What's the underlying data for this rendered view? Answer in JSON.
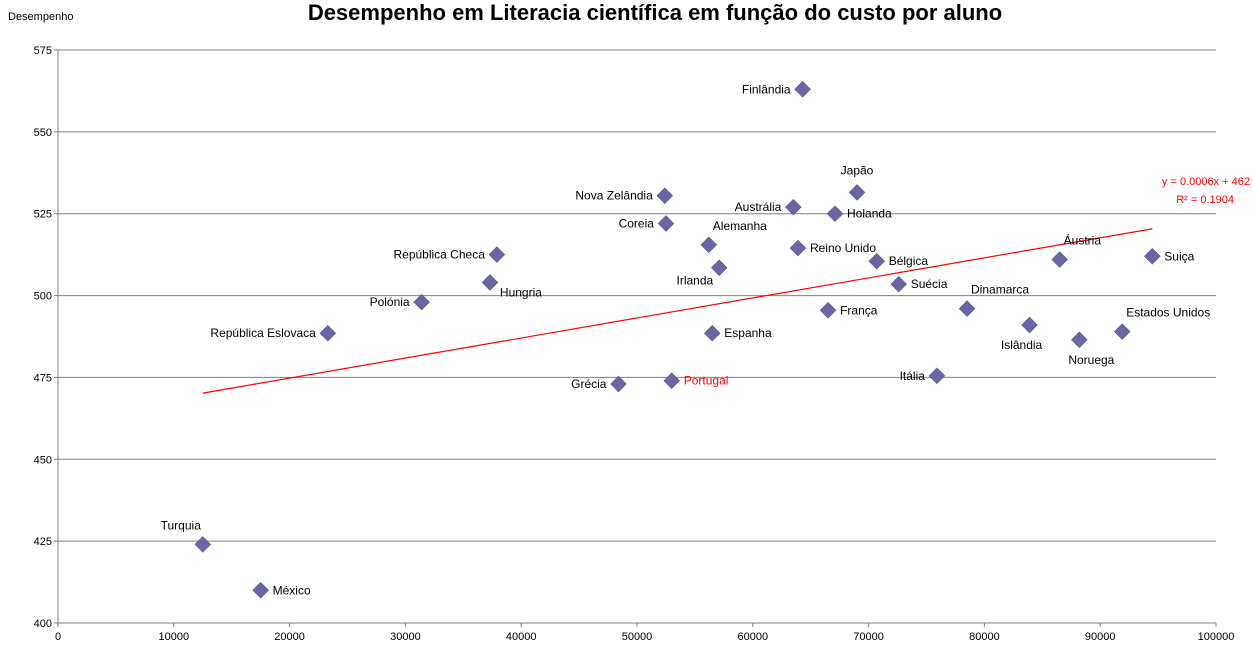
{
  "chart_data": {
    "type": "scatter",
    "title": "Desempenho em Literacia científica em função do custo por aluno",
    "ylabel": "Desempenho",
    "xlabel": "",
    "xlim": [
      0,
      100000
    ],
    "ylim": [
      400,
      575
    ],
    "x_ticks": [
      0,
      10000,
      20000,
      30000,
      40000,
      50000,
      60000,
      70000,
      80000,
      90000,
      100000
    ],
    "y_ticks": [
      400,
      425,
      450,
      475,
      500,
      525,
      550,
      575
    ],
    "grid": "horizontal",
    "marker_color": "#6a66a3",
    "highlight_color": "#ff0000",
    "points": [
      {
        "label": "Finlândia",
        "x": 64300,
        "y": 563,
        "label_side": "left"
      },
      {
        "label": "Japão",
        "x": 69000,
        "y": 531.5,
        "label_side": "above"
      },
      {
        "label": "Nova Zelândia",
        "x": 52400,
        "y": 530.5,
        "label_side": "left"
      },
      {
        "label": "Austrália",
        "x": 63500,
        "y": 527,
        "label_side": "left"
      },
      {
        "label": "Holanda",
        "x": 67100,
        "y": 525,
        "label_side": "right"
      },
      {
        "label": "Coreia",
        "x": 52500,
        "y": 522,
        "label_side": "left"
      },
      {
        "label": "Alemanha",
        "x": 56200,
        "y": 515.5,
        "label_side": "aboveright"
      },
      {
        "label": "Reino Unido",
        "x": 63900,
        "y": 514.5,
        "label_side": "right"
      },
      {
        "label": "República Checa",
        "x": 37900,
        "y": 512.5,
        "label_side": "left"
      },
      {
        "label": "Suiça",
        "x": 94500,
        "y": 512,
        "label_side": "right"
      },
      {
        "label": "Áustria",
        "x": 86500,
        "y": 511,
        "label_side": "aboveright"
      },
      {
        "label": "Bélgica",
        "x": 70700,
        "y": 510.5,
        "label_side": "right"
      },
      {
        "label": "Irlanda",
        "x": 57100,
        "y": 508.5,
        "label_side": "belowleft"
      },
      {
        "label": "Hungria",
        "x": 37300,
        "y": 504,
        "label_side": "belowright"
      },
      {
        "label": "Suécia",
        "x": 72600,
        "y": 503.5,
        "label_side": "right"
      },
      {
        "label": "Polónia",
        "x": 31400,
        "y": 498,
        "label_side": "left"
      },
      {
        "label": "Dinamarca",
        "x": 78500,
        "y": 496,
        "label_side": "aboveright"
      },
      {
        "label": "França",
        "x": 66500,
        "y": 495.5,
        "label_side": "right"
      },
      {
        "label": "Islândia",
        "x": 83900,
        "y": 491,
        "label_side": "belowleft"
      },
      {
        "label": "Estados Unidos",
        "x": 91900,
        "y": 489,
        "label_side": "aboveright"
      },
      {
        "label": "República Eslovaca",
        "x": 23300,
        "y": 488.5,
        "label_side": "left"
      },
      {
        "label": "Espanha",
        "x": 56500,
        "y": 488.5,
        "label_side": "right"
      },
      {
        "label": "Noruega",
        "x": 88200,
        "y": 486.5,
        "label_side": "belowleft"
      },
      {
        "label": "Itália",
        "x": 75900,
        "y": 475.5,
        "label_side": "left"
      },
      {
        "label": "Portugal",
        "x": 53000,
        "y": 474,
        "label_side": "right",
        "highlight": true
      },
      {
        "label": "Grécia",
        "x": 48400,
        "y": 473,
        "label_side": "left"
      },
      {
        "label": "Turquia",
        "x": 12500,
        "y": 424,
        "label_side": "aboveleft"
      },
      {
        "label": "México",
        "x": 17500,
        "y": 410,
        "label_side": "right"
      }
    ],
    "trendline": {
      "x_start": 12500,
      "x_end": 94500,
      "y_start": 470.2,
      "y_end": 520.4,
      "color": "#ff0000",
      "equation": "y = 0.0006x + 462",
      "r_squared": "R² = 0.1904"
    }
  }
}
